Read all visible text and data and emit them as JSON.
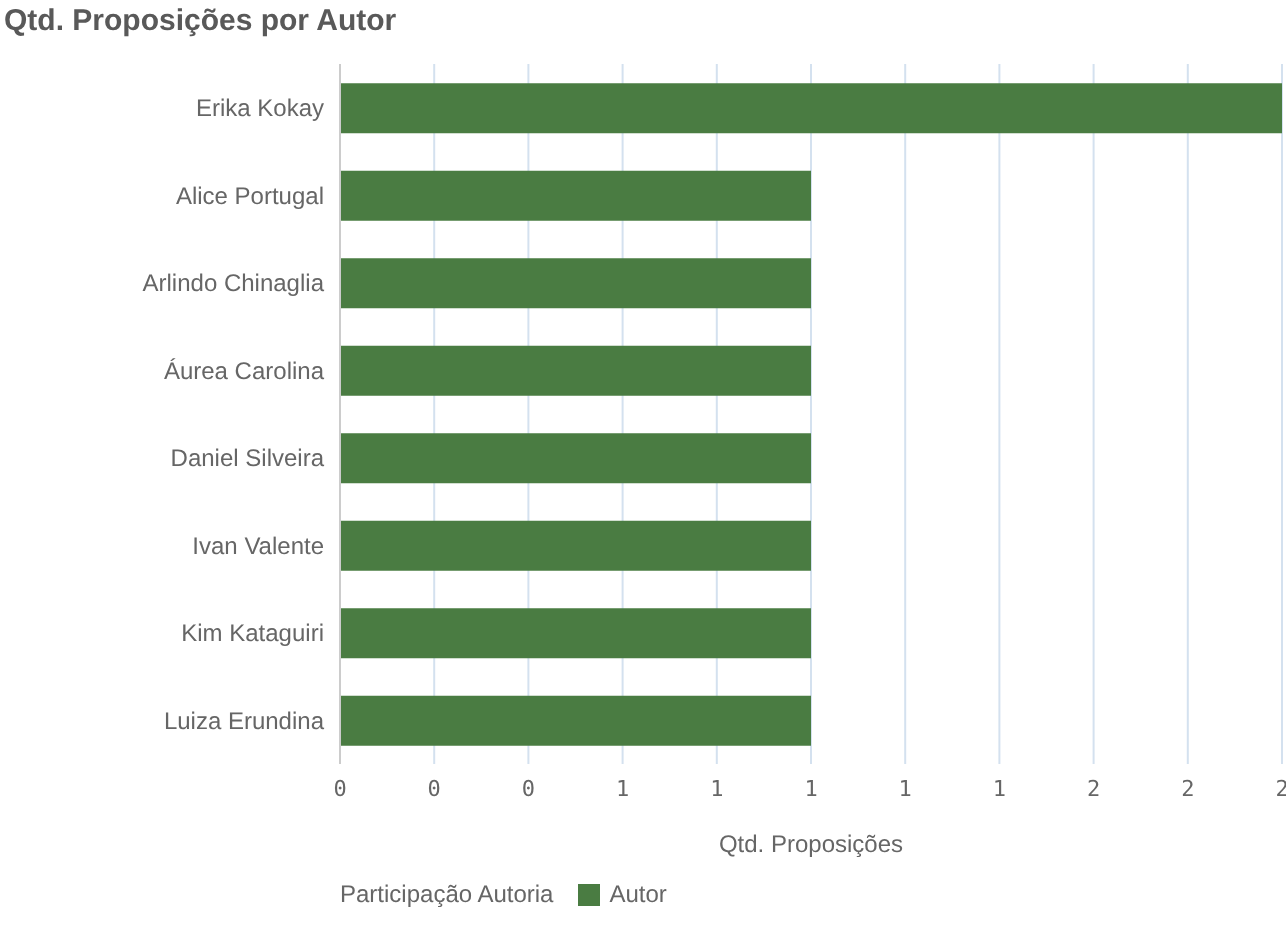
{
  "chart_data": {
    "type": "bar",
    "orientation": "horizontal",
    "title": "Qtd. Proposições por Autor",
    "xlabel": "Qtd. Proposições",
    "legend_title": "Participação Autoria",
    "categories": [
      "Erika Kokay",
      "Alice Portugal",
      "Arlindo Chinaglia",
      "Áurea Carolina",
      "Daniel Silveira",
      "Ivan Valente",
      "Kim Kataguiri",
      "Luiza Erundina"
    ],
    "series": [
      {
        "name": "Autor",
        "color": "#4a7c42",
        "values": [
          2,
          1,
          1,
          1,
          1,
          1,
          1,
          1
        ]
      }
    ],
    "xlim": [
      0,
      2
    ],
    "xticks": [
      {
        "value": 0,
        "label": "0"
      },
      {
        "value": 0.2,
        "label": "0"
      },
      {
        "value": 0.4,
        "label": "0"
      },
      {
        "value": 0.6,
        "label": "1"
      },
      {
        "value": 0.8,
        "label": "1"
      },
      {
        "value": 1,
        "label": "1"
      },
      {
        "value": 1.2,
        "label": "1"
      },
      {
        "value": 1.4,
        "label": "1"
      },
      {
        "value": 1.6,
        "label": "2"
      },
      {
        "value": 1.8,
        "label": "2"
      },
      {
        "value": 2,
        "label": "2"
      }
    ],
    "grid": "x",
    "legend": "bottom left"
  }
}
